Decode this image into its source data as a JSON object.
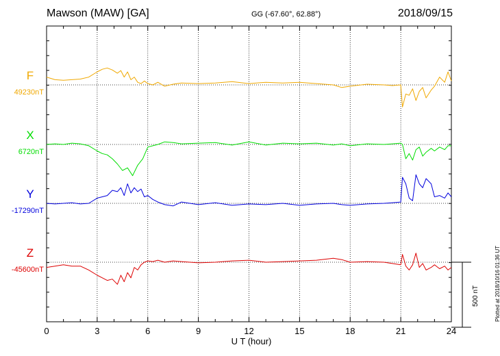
{
  "header": {
    "station": "Mawson (MAW)  [GA]",
    "coords": "GG (-67.60°,  62.88°)",
    "date": "2018/09/15"
  },
  "plotted_note": "Plotted at 2018/10/16 01:36 UT",
  "scale_bar_label": "500 nT",
  "colors": {
    "F": "#f0a800",
    "X": "#00dd00",
    "Y": "#0000dd",
    "Z": "#dd0000"
  },
  "chart_data": {
    "type": "line",
    "title": "Mawson (MAW)  [GA]",
    "xlabel": "U T (hour)",
    "xlim": [
      0,
      24
    ],
    "xticks": [
      0,
      3,
      6,
      9,
      12,
      15,
      18,
      21,
      24
    ],
    "grid": true,
    "scale_bar_nT": 500,
    "series": [
      {
        "name": "F",
        "baseline_label": "49230nT",
        "x": [
          0,
          0.5,
          1,
          1.5,
          2,
          2.5,
          3,
          3.3,
          3.6,
          3.9,
          4.2,
          4.4,
          4.6,
          4.8,
          5,
          5.2,
          5.4,
          5.6,
          5.8,
          6,
          6.3,
          6.6,
          7,
          7.5,
          8,
          9,
          10,
          11,
          12,
          13,
          14,
          15,
          16,
          17,
          17.5,
          18,
          19,
          20,
          20.5,
          21,
          21.1,
          21.3,
          21.5,
          21.7,
          21.9,
          22.1,
          22.3,
          22.5,
          22.8,
          23,
          23.3,
          23.6,
          23.8,
          24
        ],
        "y": [
          60,
          40,
          35,
          40,
          45,
          60,
          100,
          120,
          130,
          115,
          90,
          110,
          60,
          100,
          40,
          60,
          20,
          10,
          30,
          10,
          0,
          20,
          -10,
          5,
          15,
          10,
          15,
          25,
          10,
          20,
          15,
          20,
          10,
          0,
          -20,
          -10,
          5,
          0,
          -5,
          0,
          -170,
          -70,
          -80,
          -30,
          -120,
          -50,
          -20,
          -100,
          -40,
          -10,
          60,
          20,
          100,
          30
        ]
      },
      {
        "name": "X",
        "baseline_label": "6720nT",
        "x": [
          0,
          0.5,
          1,
          1.5,
          2,
          2.5,
          3,
          3.3,
          3.6,
          3.9,
          4.2,
          4.5,
          4.8,
          5.1,
          5.4,
          5.7,
          6,
          6.3,
          6.6,
          7,
          7.5,
          8,
          9,
          10,
          11,
          12,
          13,
          14,
          15,
          16,
          17,
          17.5,
          18,
          19,
          20,
          20.5,
          21,
          21.1,
          21.3,
          21.5,
          21.7,
          21.9,
          22.1,
          22.3,
          22.5,
          22.8,
          23,
          23.3,
          23.6,
          23.8,
          24
        ],
        "y": [
          0,
          5,
          0,
          10,
          5,
          -10,
          -50,
          -70,
          -80,
          -110,
          -150,
          -200,
          -180,
          -240,
          -160,
          -110,
          -20,
          -10,
          0,
          20,
          15,
          5,
          10,
          15,
          -5,
          20,
          -5,
          10,
          5,
          10,
          -5,
          5,
          -10,
          5,
          0,
          5,
          10,
          0,
          -110,
          -70,
          -120,
          -40,
          -20,
          -90,
          -60,
          -30,
          -50,
          -20,
          -40,
          -10,
          -10
        ]
      },
      {
        "name": "Y",
        "baseline_label": "-17290nT",
        "x": [
          0,
          0.5,
          1,
          1.5,
          2,
          2.5,
          3,
          3.3,
          3.6,
          3.9,
          4.2,
          4.4,
          4.6,
          4.8,
          5,
          5.2,
          5.4,
          5.6,
          5.8,
          6,
          6.3,
          6.6,
          7,
          7.5,
          8,
          9,
          10,
          11,
          12,
          13,
          14,
          15,
          16,
          17,
          17.5,
          18,
          19,
          20,
          20.5,
          21,
          21.1,
          21.3,
          21.5,
          21.7,
          21.9,
          22.1,
          22.3,
          22.5,
          22.8,
          23,
          23.3,
          23.6,
          23.8,
          24
        ],
        "y": [
          0,
          -5,
          0,
          5,
          -5,
          0,
          40,
          50,
          60,
          100,
          90,
          120,
          60,
          150,
          80,
          120,
          90,
          110,
          50,
          60,
          30,
          10,
          -10,
          -20,
          10,
          -10,
          5,
          -15,
          -5,
          -10,
          0,
          -15,
          -5,
          0,
          -10,
          -15,
          -5,
          0,
          5,
          10,
          200,
          150,
          40,
          20,
          220,
          150,
          120,
          190,
          150,
          50,
          60,
          40,
          80,
          50
        ]
      },
      {
        "name": "Z",
        "baseline_label": "-45600nT",
        "x": [
          0,
          0.5,
          1,
          1.5,
          2,
          2.5,
          3,
          3.3,
          3.6,
          3.9,
          4.2,
          4.4,
          4.6,
          4.8,
          5,
          5.2,
          5.4,
          5.6,
          5.8,
          6,
          6.3,
          6.6,
          7,
          7.5,
          8,
          9,
          10,
          11,
          12,
          13,
          14,
          15,
          16,
          17,
          17.5,
          18,
          19,
          20,
          20.5,
          21,
          21.1,
          21.3,
          21.5,
          21.7,
          21.9,
          22.1,
          22.3,
          22.5,
          22.8,
          23,
          23.3,
          23.6,
          23.8,
          24
        ],
        "y": [
          -40,
          -30,
          -20,
          -30,
          -30,
          -60,
          -100,
          -120,
          -140,
          -130,
          -170,
          -100,
          -150,
          -80,
          -120,
          -40,
          -60,
          -20,
          0,
          10,
          5,
          15,
          0,
          10,
          5,
          -5,
          0,
          10,
          15,
          0,
          5,
          10,
          15,
          30,
          20,
          0,
          5,
          0,
          -10,
          -20,
          60,
          -30,
          -60,
          -20,
          70,
          -40,
          -10,
          -60,
          -40,
          -20,
          -50,
          -30,
          -60,
          -40
        ]
      }
    ]
  }
}
